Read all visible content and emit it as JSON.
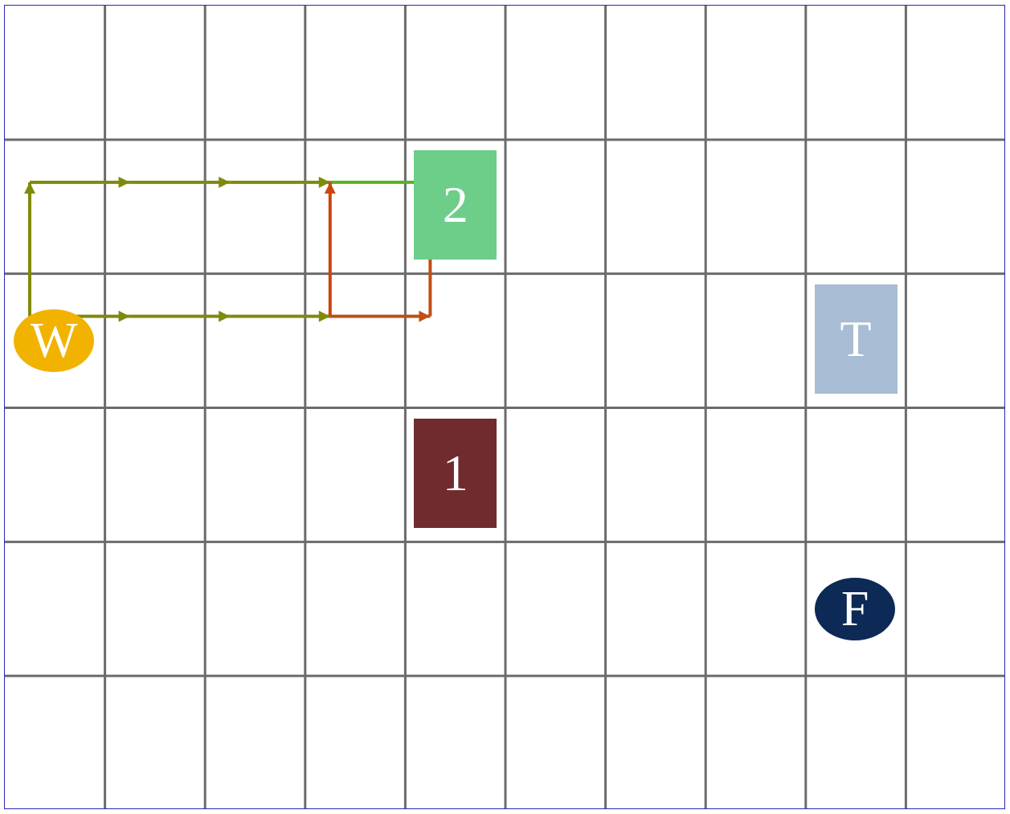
{
  "board": {
    "columns": 10,
    "rows": 6,
    "grid_color": "#6b6b6b",
    "border_color": "#2a2ab0"
  },
  "pieces": [
    {
      "id": "piece-2",
      "label": "2",
      "shape": "square",
      "color": "#6dce8a",
      "col": 4,
      "row": 1
    },
    {
      "id": "piece-t",
      "label": "T",
      "shape": "square",
      "color": "#a8bdd3",
      "col": 8,
      "row": 2
    },
    {
      "id": "piece-1",
      "label": "1",
      "shape": "square",
      "color": "#6f2b2d",
      "col": 4,
      "row": 3
    },
    {
      "id": "piece-w",
      "label": "W",
      "shape": "circle",
      "color": "#f1b300",
      "col": 0,
      "row": 2
    },
    {
      "id": "piece-f",
      "label": "F",
      "shape": "circle",
      "color": "#0c2a55",
      "col": 8,
      "row": 4
    }
  ],
  "paths": [
    {
      "id": "olive-path",
      "color": "#7f8a0c",
      "points": [
        [
          0,
          2
        ],
        [
          1,
          2
        ],
        [
          2,
          2
        ],
        [
          3,
          2
        ]
      ],
      "branch": [
        [
          0,
          2
        ],
        [
          0,
          1
        ],
        [
          1,
          1
        ],
        [
          2,
          1
        ],
        [
          3,
          1
        ]
      ]
    },
    {
      "id": "green-path",
      "color": "#58b41c",
      "points": [
        [
          3,
          1
        ],
        [
          4,
          1
        ]
      ]
    },
    {
      "id": "red-path",
      "color": "#c9460e",
      "points": [
        [
          3,
          2
        ],
        [
          3,
          1
        ]
      ]
    },
    {
      "id": "orange-path",
      "color": "#c24e10",
      "points": [
        [
          3,
          2
        ],
        [
          4,
          2
        ],
        [
          4,
          1
        ]
      ]
    }
  ]
}
